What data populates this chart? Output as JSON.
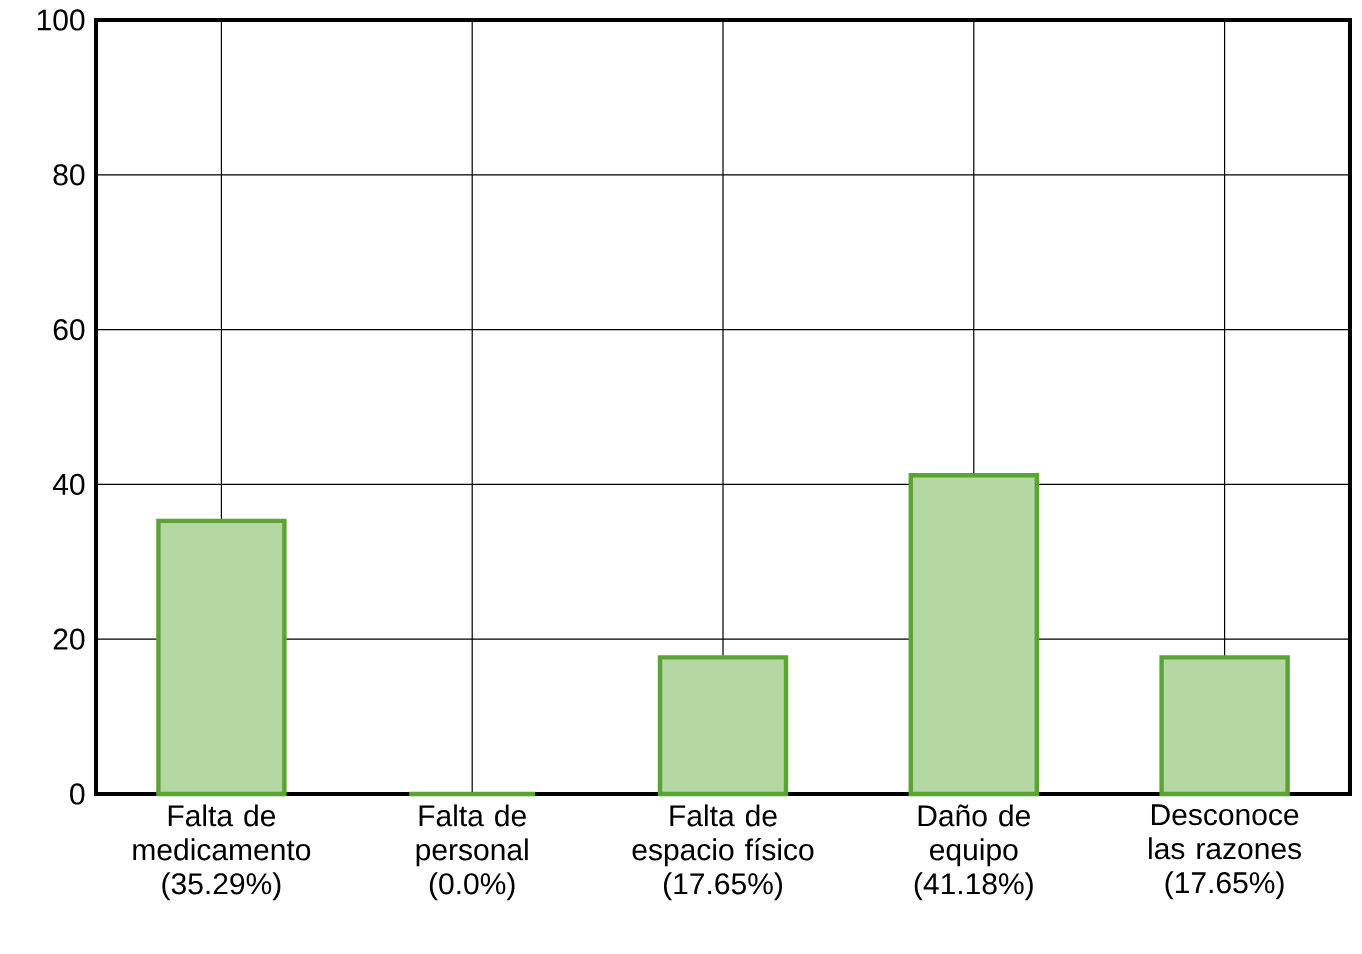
{
  "chart_data": {
    "type": "bar",
    "categories": [
      "Falta de medicamento (35.29%)",
      "Falta de personal (0.0%)",
      "Falta de espacio físico (17.65%)",
      "Daño de equipo (41.18%)",
      "Desconoce las razones (17.65%)"
    ],
    "values": [
      35.29,
      0.0,
      17.65,
      41.18,
      17.65
    ],
    "color": "#5aa532",
    "ylim": [
      0,
      100
    ],
    "yticks": [
      0,
      20,
      40,
      60,
      80,
      100
    ],
    "grid": true
  }
}
